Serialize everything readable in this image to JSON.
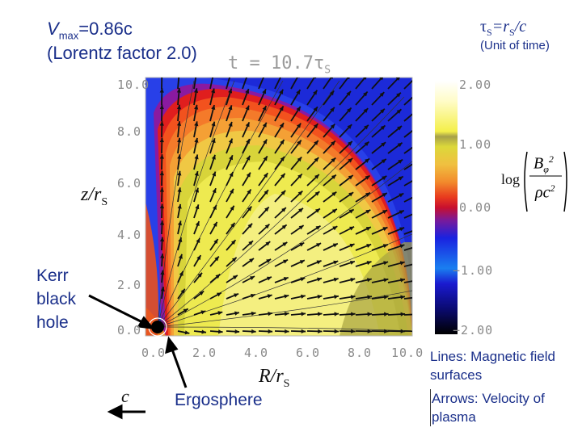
{
  "header": {
    "vmax_prefix": "V",
    "vmax_sub": "max",
    "vmax_suffix": "=0.86c",
    "lorentz": "(Lorentz factor 2.0)",
    "tau_main": "τ",
    "tau_sub": "S",
    "tau_eq": "=r",
    "tau_sub2": "S",
    "tau_tail": "/c",
    "unit_note": "(Unit of time)",
    "time_label": "t = 10.7τ",
    "time_sub": "S"
  },
  "axes": {
    "y_label": "z/r",
    "y_label_sub": "S",
    "x_label": "R/r",
    "x_label_sub": "S",
    "y_ticks": [
      "10.0",
      "8.0",
      "6.0",
      "4.0",
      "2.0",
      "0.0"
    ],
    "x_ticks": [
      "0.0",
      "2.0",
      "4.0",
      "6.0",
      "8.0",
      "10.0"
    ]
  },
  "colorbar": {
    "ticks": [
      "2.00",
      "1.00",
      "0.00",
      "−1.00",
      "−2.00"
    ],
    "log_label": "log",
    "numerator": "B",
    "numerator_sub": "φ",
    "numerator_sup": "2",
    "denominator": "ρc",
    "denominator_sup": "2"
  },
  "annotations": {
    "kerr_lines": [
      "Kerr",
      "black",
      "hole"
    ],
    "ergosphere": "Ergosphere",
    "c_label": "c",
    "lines_note": [
      "Lines: Magnetic field",
      "surfaces"
    ],
    "arrows_note": [
      "Arrows: Velocity of",
      "plasma"
    ]
  },
  "colors": {
    "text_blue": "#1a2f8a",
    "tick_gray": "#8a8a8a"
  }
}
